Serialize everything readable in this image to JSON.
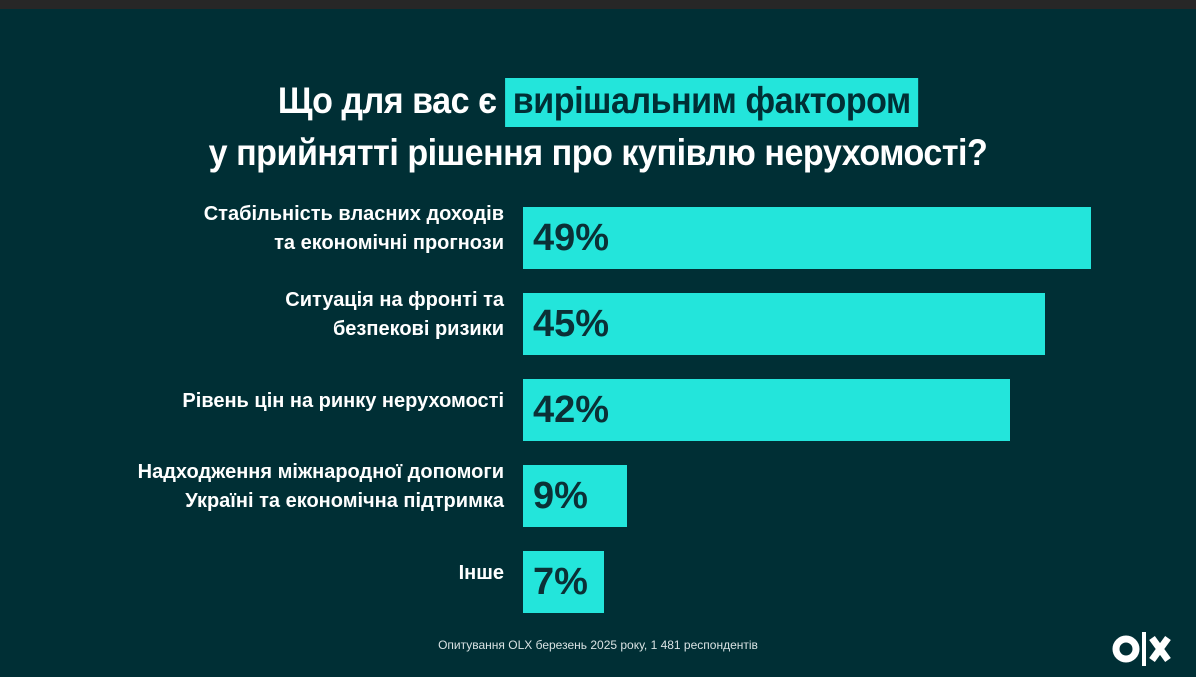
{
  "chart_data": {
    "type": "bar",
    "orientation": "horizontal",
    "title_part1": "Що для вас є",
    "title_highlight": "вирішальним фактором",
    "title_part2": "у прийнятті рішення про купівлю нерухомості?",
    "categories": [
      [
        "Стабільність власних доходів",
        "та економічні прогнози"
      ],
      [
        "Ситуація на фронті та",
        "безпекові ризики"
      ],
      [
        "Рівень цін на ринку нерухомості"
      ],
      [
        "Надходження міжнародної допомоги",
        "Україні та економічна підтримка"
      ],
      [
        "Інше"
      ]
    ],
    "values": [
      49,
      45,
      42,
      9,
      7
    ],
    "value_labels": [
      "49%",
      "45%",
      "42%",
      "9%",
      "7%"
    ],
    "unit": "%",
    "bar_color": "#23e5db",
    "background_color": "#002f35",
    "grid": false
  },
  "footer": "Опитування OLX березень 2025 року, 1 481 респондентів",
  "logo": "OLX"
}
